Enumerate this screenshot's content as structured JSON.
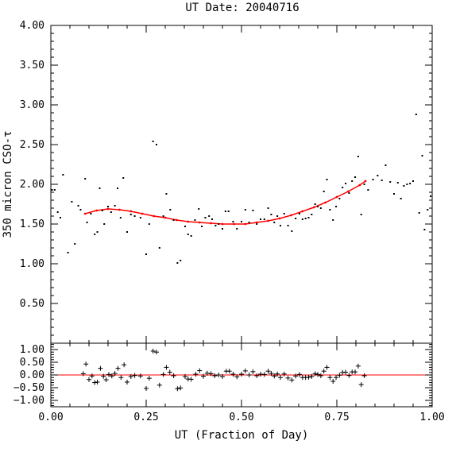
{
  "chart_data": {
    "type": "scatter",
    "title": "UT Date: 20040716",
    "xlabel": "UT (Fraction of Day)",
    "ylabel": "350 micron CSO-τ",
    "xlim": [
      0,
      1
    ],
    "upper": {
      "ylim": [
        0,
        4
      ],
      "yticks": [
        0.5,
        1.0,
        1.5,
        2.0,
        2.5,
        3.0,
        3.5,
        4.0
      ],
      "ytick_labels": [
        "0.50",
        "1.00",
        "1.50",
        "2.00",
        "2.50",
        "3.00",
        "3.50",
        "4.00"
      ]
    },
    "xticks": [
      0,
      0.25,
      0.5,
      0.75,
      1.0
    ],
    "xtick_labels": [
      "0.00",
      "0.25",
      "0.50",
      "0.75",
      "1.00"
    ],
    "series": [
      {
        "type": "scatter",
        "marker": "dot",
        "color": "#000000",
        "points": [
          [
            0.003,
            1.93
          ],
          [
            0.01,
            1.93
          ],
          [
            0.018,
            1.65
          ],
          [
            0.025,
            1.58
          ],
          [
            0.032,
            2.12
          ],
          [
            0.045,
            1.14
          ],
          [
            0.055,
            1.78
          ],
          [
            0.063,
            1.25
          ],
          [
            0.072,
            1.73
          ],
          [
            0.078,
            1.68
          ],
          [
            0.09,
            2.07
          ],
          [
            0.095,
            1.52
          ],
          [
            0.105,
            1.63
          ],
          [
            0.115,
            1.37
          ],
          [
            0.122,
            1.4
          ],
          [
            0.128,
            1.95
          ],
          [
            0.135,
            1.67
          ],
          [
            0.14,
            1.5
          ],
          [
            0.15,
            1.72
          ],
          [
            0.158,
            1.65
          ],
          [
            0.168,
            1.73
          ],
          [
            0.175,
            1.95
          ],
          [
            0.183,
            1.58
          ],
          [
            0.19,
            2.08
          ],
          [
            0.2,
            1.4
          ],
          [
            0.21,
            1.62
          ],
          [
            0.22,
            1.6
          ],
          [
            0.235,
            1.58
          ],
          [
            0.25,
            1.12
          ],
          [
            0.258,
            1.5
          ],
          [
            0.268,
            2.54
          ],
          [
            0.277,
            2.5
          ],
          [
            0.285,
            1.2
          ],
          [
            0.295,
            1.6
          ],
          [
            0.303,
            1.88
          ],
          [
            0.313,
            1.68
          ],
          [
            0.322,
            1.55
          ],
          [
            0.332,
            1.01
          ],
          [
            0.34,
            1.04
          ],
          [
            0.352,
            1.47
          ],
          [
            0.36,
            1.37
          ],
          [
            0.368,
            1.35
          ],
          [
            0.378,
            1.55
          ],
          [
            0.388,
            1.69
          ],
          [
            0.396,
            1.47
          ],
          [
            0.405,
            1.58
          ],
          [
            0.415,
            1.6
          ],
          [
            0.423,
            1.56
          ],
          [
            0.432,
            1.48
          ],
          [
            0.44,
            1.5
          ],
          [
            0.45,
            1.44
          ],
          [
            0.458,
            1.66
          ],
          [
            0.466,
            1.66
          ],
          [
            0.478,
            1.53
          ],
          [
            0.488,
            1.44
          ],
          [
            0.5,
            1.53
          ],
          [
            0.51,
            1.68
          ],
          [
            0.52,
            1.52
          ],
          [
            0.53,
            1.67
          ],
          [
            0.54,
            1.5
          ],
          [
            0.55,
            1.56
          ],
          [
            0.56,
            1.56
          ],
          [
            0.57,
            1.7
          ],
          [
            0.578,
            1.62
          ],
          [
            0.586,
            1.52
          ],
          [
            0.594,
            1.6
          ],
          [
            0.602,
            1.48
          ],
          [
            0.612,
            1.63
          ],
          [
            0.622,
            1.48
          ],
          [
            0.632,
            1.41
          ],
          [
            0.642,
            1.57
          ],
          [
            0.652,
            1.63
          ],
          [
            0.66,
            1.56
          ],
          [
            0.668,
            1.57
          ],
          [
            0.676,
            1.58
          ],
          [
            0.684,
            1.62
          ],
          [
            0.693,
            1.75
          ],
          [
            0.7,
            1.72
          ],
          [
            0.708,
            1.7
          ],
          [
            0.716,
            1.91
          ],
          [
            0.724,
            2.06
          ],
          [
            0.732,
            1.68
          ],
          [
            0.74,
            1.55
          ],
          [
            0.748,
            1.72
          ],
          [
            0.757,
            1.82
          ],
          [
            0.765,
            1.96
          ],
          [
            0.773,
            2.01
          ],
          [
            0.782,
            1.89
          ],
          [
            0.79,
            2.04
          ],
          [
            0.798,
            2.09
          ],
          [
            0.806,
            2.35
          ],
          [
            0.814,
            1.62
          ],
          [
            0.822,
            2.0
          ],
          [
            0.832,
            1.93
          ],
          [
            0.845,
            2.06
          ],
          [
            0.857,
            2.11
          ],
          [
            0.868,
            2.05
          ],
          [
            0.878,
            2.24
          ],
          [
            0.89,
            2.03
          ],
          [
            0.9,
            1.88
          ],
          [
            0.91,
            2.02
          ],
          [
            0.918,
            1.82
          ],
          [
            0.926,
            1.98
          ],
          [
            0.934,
            2.0
          ],
          [
            0.942,
            2.01
          ],
          [
            0.95,
            2.04
          ],
          [
            0.958,
            2.88
          ],
          [
            0.966,
            1.64
          ],
          [
            0.974,
            2.36
          ],
          [
            0.98,
            1.43
          ],
          [
            0.988,
            1.68
          ],
          [
            0.996,
            1.85
          ]
        ]
      },
      {
        "type": "line",
        "name": "fit",
        "color": "#ff0000",
        "points": [
          [
            0.09,
            1.63
          ],
          [
            0.12,
            1.67
          ],
          [
            0.15,
            1.69
          ],
          [
            0.18,
            1.68
          ],
          [
            0.21,
            1.66
          ],
          [
            0.24,
            1.63
          ],
          [
            0.27,
            1.6
          ],
          [
            0.3,
            1.58
          ],
          [
            0.33,
            1.55
          ],
          [
            0.36,
            1.53
          ],
          [
            0.39,
            1.52
          ],
          [
            0.42,
            1.51
          ],
          [
            0.45,
            1.5
          ],
          [
            0.48,
            1.5
          ],
          [
            0.51,
            1.5
          ],
          [
            0.54,
            1.52
          ],
          [
            0.57,
            1.54
          ],
          [
            0.6,
            1.57
          ],
          [
            0.63,
            1.61
          ],
          [
            0.66,
            1.66
          ],
          [
            0.69,
            1.71
          ],
          [
            0.72,
            1.77
          ],
          [
            0.75,
            1.84
          ],
          [
            0.78,
            1.91
          ],
          [
            0.81,
            1.99
          ],
          [
            0.825,
            2.04
          ]
        ]
      }
    ],
    "residuals": {
      "ylim": [
        -1.25,
        1.25
      ],
      "yticks": [
        -1.0,
        -0.5,
        0.0,
        0.5,
        1.0
      ],
      "ytick_labels": [
        "−1.00",
        "−0.50",
        "0.00",
        "0.50",
        "1.00"
      ],
      "zero_line_color": "#ff0000",
      "marker": "plus",
      "points": [
        [
          0.085,
          0.05
        ],
        [
          0.092,
          0.43
        ],
        [
          0.1,
          -0.18
        ],
        [
          0.108,
          -0.04
        ],
        [
          0.115,
          -0.3
        ],
        [
          0.122,
          -0.28
        ],
        [
          0.13,
          0.26
        ],
        [
          0.138,
          -0.05
        ],
        [
          0.145,
          -0.19
        ],
        [
          0.152,
          0.02
        ],
        [
          0.16,
          -0.04
        ],
        [
          0.168,
          0.06
        ],
        [
          0.176,
          0.26
        ],
        [
          0.184,
          -0.1
        ],
        [
          0.192,
          0.4
        ],
        [
          0.2,
          -0.28
        ],
        [
          0.21,
          -0.06
        ],
        [
          0.22,
          -0.02
        ],
        [
          0.235,
          -0.04
        ],
        [
          0.25,
          -0.53
        ],
        [
          0.258,
          -0.13
        ],
        [
          0.268,
          0.94
        ],
        [
          0.277,
          0.9
        ],
        [
          0.285,
          -0.4
        ],
        [
          0.295,
          0.02
        ],
        [
          0.303,
          0.3
        ],
        [
          0.312,
          0.11
        ],
        [
          0.322,
          -0.03
        ],
        [
          0.332,
          -0.54
        ],
        [
          0.34,
          -0.51
        ],
        [
          0.352,
          -0.06
        ],
        [
          0.36,
          -0.16
        ],
        [
          0.368,
          -0.17
        ],
        [
          0.38,
          0.03
        ],
        [
          0.39,
          0.17
        ],
        [
          0.4,
          -0.05
        ],
        [
          0.41,
          0.07
        ],
        [
          0.42,
          0.05
        ],
        [
          0.43,
          -0.03
        ],
        [
          0.44,
          0.0
        ],
        [
          0.45,
          -0.06
        ],
        [
          0.46,
          0.15
        ],
        [
          0.468,
          0.15
        ],
        [
          0.478,
          0.03
        ],
        [
          0.488,
          -0.07
        ],
        [
          0.5,
          0.03
        ],
        [
          0.51,
          0.16
        ],
        [
          0.52,
          0.0
        ],
        [
          0.53,
          0.13
        ],
        [
          0.54,
          -0.03
        ],
        [
          0.55,
          0.03
        ],
        [
          0.56,
          0.02
        ],
        [
          0.57,
          0.15
        ],
        [
          0.578,
          0.06
        ],
        [
          0.586,
          -0.04
        ],
        [
          0.594,
          0.04
        ],
        [
          0.602,
          -0.1
        ],
        [
          0.612,
          0.04
        ],
        [
          0.622,
          -0.12
        ],
        [
          0.632,
          -0.2
        ],
        [
          0.642,
          -0.04
        ],
        [
          0.652,
          0.02
        ],
        [
          0.66,
          -0.1
        ],
        [
          0.668,
          -0.1
        ],
        [
          0.676,
          -0.09
        ],
        [
          0.684,
          -0.06
        ],
        [
          0.693,
          0.05
        ],
        [
          0.7,
          0.02
        ],
        [
          0.708,
          -0.03
        ],
        [
          0.716,
          0.15
        ],
        [
          0.724,
          0.3
        ],
        [
          0.732,
          -0.1
        ],
        [
          0.74,
          -0.25
        ],
        [
          0.748,
          -0.1
        ],
        [
          0.757,
          -0.01
        ],
        [
          0.765,
          0.1
        ],
        [
          0.773,
          0.11
        ],
        [
          0.782,
          -0.02
        ],
        [
          0.79,
          0.12
        ],
        [
          0.798,
          0.12
        ],
        [
          0.806,
          0.35
        ],
        [
          0.814,
          -0.38
        ],
        [
          0.822,
          -0.03
        ]
      ]
    }
  }
}
